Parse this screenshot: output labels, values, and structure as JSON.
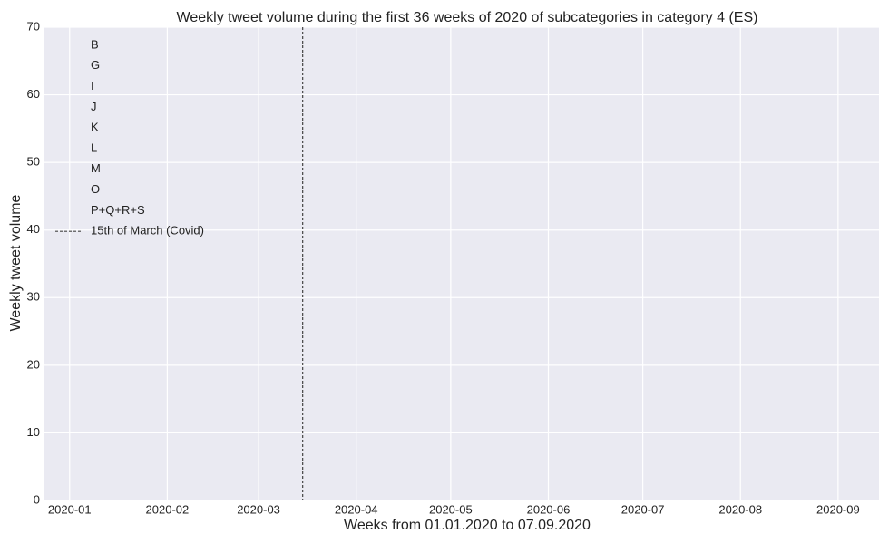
{
  "chart_data": {
    "type": "line",
    "title": "Weekly tweet volume during the first 36 weeks of 2020 of subcategories in category 4 (ES)",
    "x_label": "Weeks from 01.01.2020 to 07.09.2020",
    "y_label": "Weekly tweet volume",
    "x": [],
    "series": [
      {
        "name": "B",
        "values": []
      },
      {
        "name": "G",
        "values": []
      },
      {
        "name": "I",
        "values": []
      },
      {
        "name": "J",
        "values": []
      },
      {
        "name": "K",
        "values": []
      },
      {
        "name": "L",
        "values": []
      },
      {
        "name": "M",
        "values": []
      },
      {
        "name": "O",
        "values": []
      },
      {
        "name": "P+Q+R+S",
        "values": []
      }
    ],
    "vline": {
      "x": "2020-03-15",
      "label": "15th of March (Covid)",
      "color": "#444444"
    },
    "xlim": [
      "2019-12-24",
      "2020-09-14"
    ],
    "xticks": [
      "2020-01",
      "2020-02",
      "2020-03",
      "2020-04",
      "2020-05",
      "2020-06",
      "2020-07",
      "2020-08",
      "2020-09"
    ],
    "ylim": [
      0,
      70
    ],
    "yticks": [
      0,
      10,
      20,
      30,
      40,
      50,
      60,
      70
    ],
    "grid": true,
    "legend": "upper left"
  }
}
